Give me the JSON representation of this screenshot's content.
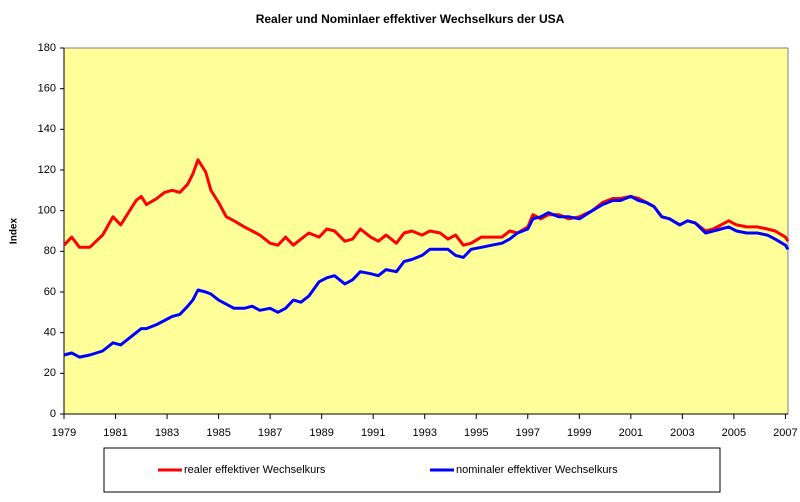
{
  "chart_data": {
    "type": "line",
    "title": "Realer und Nominlaer effektiver Wechselkurs der USA",
    "y_label": "Index",
    "x": [
      1979.0,
      1979.3,
      1979.6,
      1980.0,
      1980.5,
      1980.9,
      1981.2,
      1981.5,
      1981.8,
      1982.0,
      1982.2,
      1982.6,
      1982.9,
      1983.2,
      1983.5,
      1983.8,
      1984.0,
      1984.2,
      1984.5,
      1984.7,
      1985.0,
      1985.3,
      1985.6,
      1986.0,
      1986.3,
      1986.6,
      1987.0,
      1987.3,
      1987.6,
      1987.9,
      1988.2,
      1988.5,
      1988.9,
      1989.2,
      1989.5,
      1989.9,
      1990.2,
      1990.5,
      1990.9,
      1991.2,
      1991.5,
      1991.9,
      1992.2,
      1992.5,
      1992.9,
      1993.2,
      1993.6,
      1993.9,
      1994.2,
      1994.5,
      1994.8,
      1995.2,
      1995.6,
      1996.0,
      1996.3,
      1996.6,
      1997.0,
      1997.2,
      1997.5,
      1997.8,
      1998.2,
      1998.6,
      1999.0,
      1999.5,
      1999.9,
      2000.3,
      2000.6,
      2001.0,
      2001.3,
      2001.6,
      2001.9,
      2002.2,
      2002.5,
      2002.9,
      2003.2,
      2003.5,
      2003.9,
      2004.2,
      2004.5,
      2004.8,
      2005.1,
      2005.5,
      2005.9,
      2006.3,
      2006.6,
      2007.0,
      2007.1
    ],
    "series": [
      {
        "name": "realer effektiver Wechselkurs",
        "color": "#ff0000",
        "values": [
          83,
          87,
          82,
          82,
          88,
          97,
          93,
          99,
          105,
          107,
          103,
          106,
          109,
          110,
          109,
          113,
          118,
          125,
          119,
          110,
          104,
          97,
          95,
          92,
          90,
          88,
          84,
          83,
          87,
          83,
          86,
          89,
          87,
          91,
          90,
          85,
          86,
          91,
          87,
          85,
          88,
          84,
          89,
          90,
          88,
          90,
          89,
          86,
          88,
          83,
          84,
          87,
          87,
          87,
          90,
          89,
          92,
          98,
          96,
          98,
          98,
          96,
          97,
          100,
          104,
          106,
          106,
          107,
          106,
          104,
          102,
          97,
          96,
          93,
          95,
          94,
          90,
          91,
          93,
          95,
          93,
          92,
          92,
          91,
          90,
          87,
          85
        ]
      },
      {
        "name": "nominaler effektiver Wechselkurs",
        "color": "#0000ff",
        "values": [
          29,
          30,
          28,
          29,
          31,
          35,
          34,
          37,
          40,
          42,
          42,
          44,
          46,
          48,
          49,
          53,
          56,
          61,
          60,
          59,
          56,
          54,
          52,
          52,
          53,
          51,
          52,
          50,
          52,
          56,
          55,
          58,
          65,
          67,
          68,
          64,
          66,
          70,
          69,
          68,
          71,
          70,
          75,
          76,
          78,
          81,
          81,
          81,
          78,
          77,
          81,
          82,
          83,
          84,
          86,
          89,
          91,
          96,
          97,
          99,
          97,
          97,
          96,
          100,
          103,
          105,
          105,
          107,
          105,
          104,
          102,
          97,
          96,
          93,
          95,
          94,
          89,
          90,
          91,
          92,
          90,
          89,
          89,
          88,
          86,
          83,
          81
        ]
      }
    ],
    "xlim": [
      1979,
      2007.1
    ],
    "xticks": [
      1979,
      1981,
      1983,
      1985,
      1987,
      1989,
      1991,
      1993,
      1995,
      1997,
      1999,
      2001,
      2003,
      2005,
      2007
    ],
    "ylim": [
      0,
      180
    ],
    "yticks": [
      0,
      20,
      40,
      60,
      80,
      100,
      120,
      140,
      160,
      180
    ],
    "plot_background": "#ffff99",
    "legend": "bottom"
  }
}
